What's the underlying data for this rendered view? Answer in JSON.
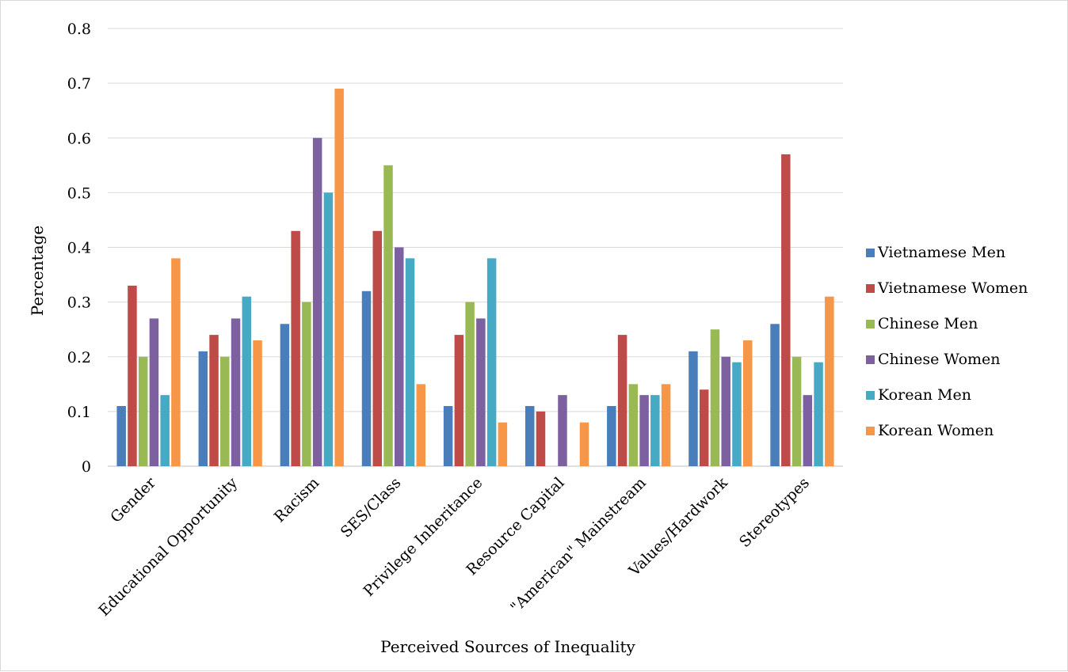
{
  "chart_data": {
    "type": "bar",
    "title": "",
    "xlabel": "Perceived Sources of Inequality",
    "ylabel": "Percentage",
    "ylim": [
      0,
      0.8
    ],
    "yticks": [
      "0",
      "0.1",
      "0.2",
      "0.3",
      "0.4",
      "0.5",
      "0.6",
      "0.7",
      "0.8"
    ],
    "grid": true,
    "legend_position": "right",
    "categories": [
      "Gender",
      "Educational Opportunity",
      "Racism",
      "SES/Class",
      "Privilege Inheritance",
      "Resource Capital",
      "\"American\" Mainstream",
      "Values/Hardwork",
      "Stereotypes"
    ],
    "series": [
      {
        "name": "Vietnamese Men",
        "color": "#4a7ebb",
        "values": [
          0.11,
          0.21,
          0.26,
          0.32,
          0.11,
          0.11,
          0.11,
          0.21,
          0.26
        ]
      },
      {
        "name": "Vietnamese Women",
        "color": "#be4b48",
        "values": [
          0.33,
          0.24,
          0.43,
          0.43,
          0.24,
          0.1,
          0.24,
          0.14,
          0.57
        ]
      },
      {
        "name": "Chinese Men",
        "color": "#98b954",
        "values": [
          0.2,
          0.2,
          0.3,
          0.55,
          0.3,
          0,
          0.15,
          0.25,
          0.2
        ]
      },
      {
        "name": "Chinese Women",
        "color": "#7d60a0",
        "values": [
          0.27,
          0.27,
          0.6,
          0.4,
          0.27,
          0.13,
          0.13,
          0.2,
          0.13
        ]
      },
      {
        "name": "Korean Men",
        "color": "#46aac5",
        "values": [
          0.13,
          0.31,
          0.5,
          0.38,
          0.38,
          0,
          0.13,
          0.19,
          0.19
        ]
      },
      {
        "name": "Korean Women",
        "color": "#f79646",
        "values": [
          0.38,
          0.23,
          0.69,
          0.15,
          0.08,
          0.08,
          0.15,
          0.23,
          0.31
        ]
      }
    ]
  }
}
